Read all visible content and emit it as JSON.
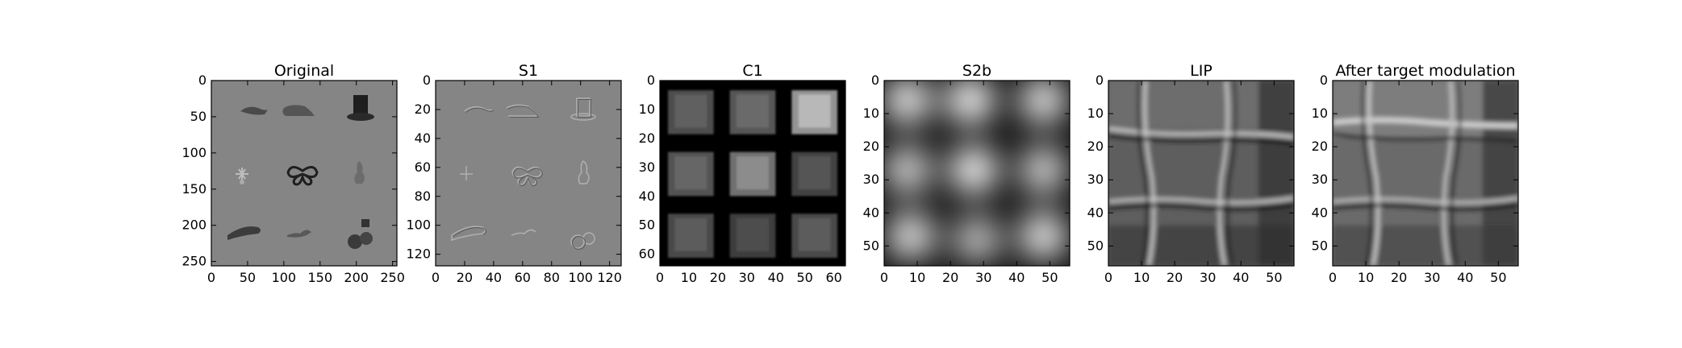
{
  "figure": {
    "background": "#ffffff",
    "frame_color": "#000000"
  },
  "chart_data": [
    {
      "type": "heatmap",
      "title": "Original",
      "xlim": [
        0,
        256
      ],
      "ylim": [
        256,
        0
      ],
      "xticks": [
        "0",
        "50",
        "100",
        "150",
        "200",
        "250"
      ],
      "xtick_values": [
        0,
        50,
        100,
        150,
        200,
        250
      ],
      "yticks": [
        "0",
        "50",
        "100",
        "150",
        "200",
        "250"
      ],
      "ytick_values": [
        0,
        50,
        100,
        150,
        200,
        250
      ],
      "colormap": "gray",
      "background_level": 0.52,
      "grid": "3x3",
      "objects": [
        "hand",
        "shoe",
        "top-hat",
        "chandelier",
        "butterfly",
        "statue",
        "hat",
        "dinosaur",
        "cherries"
      ]
    },
    {
      "type": "heatmap",
      "title": "S1",
      "xlim": [
        0,
        128
      ],
      "ylim": [
        128,
        0
      ],
      "xticks": [
        "0",
        "20",
        "40",
        "60",
        "80",
        "100",
        "120"
      ],
      "xtick_values": [
        0,
        20,
        40,
        60,
        80,
        100,
        120
      ],
      "yticks": [
        "0",
        "20",
        "40",
        "60",
        "80",
        "100",
        "120"
      ],
      "ytick_values": [
        0,
        20,
        40,
        60,
        80,
        100,
        120
      ],
      "colormap": "gray",
      "background_level": 0.52,
      "grid": "3x3",
      "rendering": "edge-outlines"
    },
    {
      "type": "heatmap",
      "title": "C1",
      "xlim": [
        0,
        64
      ],
      "ylim": [
        64,
        0
      ],
      "xticks": [
        "0",
        "10",
        "20",
        "30",
        "40",
        "50",
        "60"
      ],
      "xtick_values": [
        0,
        10,
        20,
        30,
        40,
        50,
        60
      ],
      "yticks": [
        "0",
        "10",
        "20",
        "30",
        "40",
        "50",
        "60"
      ],
      "ytick_values": [
        0,
        10,
        20,
        30,
        40,
        50,
        60
      ],
      "colormap": "gray",
      "background_level": 0.0,
      "blocks": [
        {
          "row": 0,
          "col": 0,
          "level": 0.38
        },
        {
          "row": 0,
          "col": 1,
          "level": 0.42
        },
        {
          "row": 0,
          "col": 2,
          "level": 0.72
        },
        {
          "row": 1,
          "col": 0,
          "level": 0.4
        },
        {
          "row": 1,
          "col": 1,
          "level": 0.55
        },
        {
          "row": 1,
          "col": 2,
          "level": 0.33
        },
        {
          "row": 2,
          "col": 0,
          "level": 0.36
        },
        {
          "row": 2,
          "col": 1,
          "level": 0.3
        },
        {
          "row": 2,
          "col": 2,
          "level": 0.36
        }
      ]
    },
    {
      "type": "heatmap",
      "title": "S2b",
      "xlim": [
        0,
        56
      ],
      "ylim": [
        56,
        0
      ],
      "xticks": [
        "0",
        "10",
        "20",
        "30",
        "40",
        "50"
      ],
      "xtick_values": [
        0,
        10,
        20,
        30,
        40,
        50
      ],
      "yticks": [
        "0",
        "10",
        "20",
        "30",
        "40",
        "50"
      ],
      "ytick_values": [
        0,
        10,
        20,
        30,
        40,
        50
      ],
      "colormap": "gray",
      "background_level": 0.06,
      "blobs": [
        {
          "x": 7,
          "y": 6,
          "level": 0.95
        },
        {
          "x": 26,
          "y": 6,
          "level": 1.0
        },
        {
          "x": 48,
          "y": 6,
          "level": 0.92
        },
        {
          "x": 7,
          "y": 27,
          "level": 0.85
        },
        {
          "x": 27,
          "y": 27,
          "level": 1.0
        },
        {
          "x": 48,
          "y": 27,
          "level": 0.85
        },
        {
          "x": 8,
          "y": 47,
          "level": 0.92
        },
        {
          "x": 28,
          "y": 48,
          "level": 0.78
        },
        {
          "x": 48,
          "y": 47,
          "level": 0.95
        }
      ]
    },
    {
      "type": "heatmap",
      "title": "LIP",
      "xlim": [
        0,
        56
      ],
      "ylim": [
        56,
        0
      ],
      "xticks": [
        "0",
        "10",
        "20",
        "30",
        "40",
        "50"
      ],
      "xtick_values": [
        0,
        10,
        20,
        30,
        40,
        50
      ],
      "yticks": [
        "0",
        "10",
        "20",
        "30",
        "40",
        "50"
      ],
      "ytick_values": [
        0,
        10,
        20,
        30,
        40,
        50
      ],
      "colormap": "gray",
      "background_level": 0.4,
      "pattern": "grid-ridges"
    },
    {
      "type": "heatmap",
      "title": "After target modulation",
      "xlim": [
        0,
        56
      ],
      "ylim": [
        56,
        0
      ],
      "xticks": [
        "0",
        "10",
        "20",
        "30",
        "40",
        "50"
      ],
      "xtick_values": [
        0,
        10,
        20,
        30,
        40,
        50
      ],
      "yticks": [
        "0",
        "10",
        "20",
        "30",
        "40",
        "50"
      ],
      "ytick_values": [
        0,
        10,
        20,
        30,
        40,
        50
      ],
      "colormap": "gray",
      "background_level": 0.42,
      "pattern": "grid-ridges-modulated"
    }
  ]
}
